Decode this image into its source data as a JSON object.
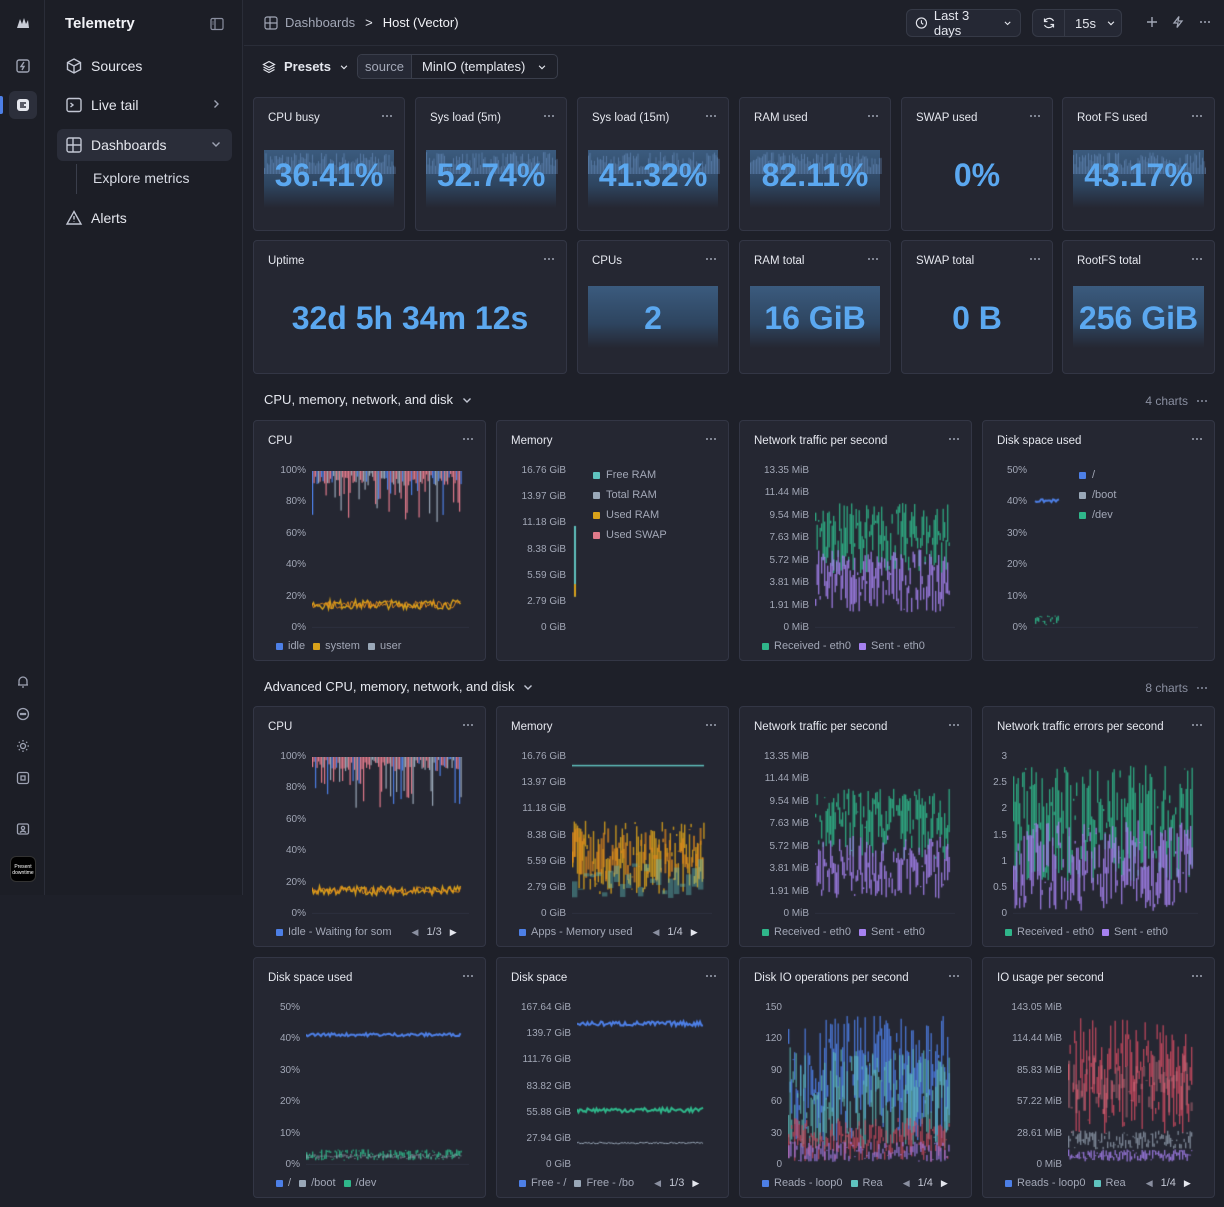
{
  "app": {
    "title": "Telemetry"
  },
  "sidebar": {
    "items": [
      {
        "label": "Sources",
        "icon": "cube-icon"
      },
      {
        "label": "Live tail",
        "icon": "terminal-icon"
      },
      {
        "label": "Dashboards",
        "icon": "dashboard-icon"
      },
      {
        "label": "Alerts",
        "icon": "warning-icon"
      }
    ],
    "sub_item": "Explore metrics",
    "badge_text": "Present downtime"
  },
  "header": {
    "breadcrumb": [
      "Dashboards",
      "Host (Vector)"
    ],
    "separator": ">",
    "time_range": "Last 3 days",
    "refresh": "15s"
  },
  "filters": {
    "presets_label": "Presets",
    "source_key": "source",
    "source_value": "MinIO (templates)"
  },
  "stats_row1": [
    {
      "title": "CPU busy",
      "value": "36.41%"
    },
    {
      "title": "Sys load (5m)",
      "value": "52.74%"
    },
    {
      "title": "Sys load (15m)",
      "value": "41.32%"
    },
    {
      "title": "RAM used",
      "value": "82.11%"
    },
    {
      "title": "SWAP used",
      "value": "0%"
    },
    {
      "title": "Root FS used",
      "value": "43.17%"
    }
  ],
  "stats_row2": [
    {
      "title": "Uptime",
      "value": "32d 5h 34m 12s"
    },
    {
      "title": "CPUs",
      "value": "2"
    },
    {
      "title": "RAM total",
      "value": "16 GiB"
    },
    {
      "title": "SWAP total",
      "value": "0 B"
    },
    {
      "title": "RootFS total",
      "value": "256 GiB"
    }
  ],
  "section1": {
    "title": "CPU, memory, network, and disk",
    "count": "4 charts"
  },
  "section2": {
    "title": "Advanced CPU, memory, network, and disk",
    "count": "8 charts"
  },
  "charts": {
    "cpu1": {
      "title": "CPU",
      "yticks": [
        "100%",
        "80%",
        "60%",
        "40%",
        "20%",
        "0%"
      ],
      "legend": [
        "idle",
        "system",
        "user"
      ]
    },
    "mem1": {
      "title": "Memory",
      "yticks": [
        "16.76 GiB",
        "13.97 GiB",
        "11.18 GiB",
        "8.38 GiB",
        "5.59 GiB",
        "2.79 GiB",
        "0 GiB"
      ],
      "legend": [
        "Free RAM",
        "Total RAM",
        "Used RAM",
        "Used SWAP"
      ]
    },
    "net1": {
      "title": "Network traffic per second",
      "yticks": [
        "13.35 MiB",
        "11.44 MiB",
        "9.54 MiB",
        "7.63 MiB",
        "5.72 MiB",
        "3.81 MiB",
        "1.91 MiB",
        "0 MiB"
      ],
      "legend": [
        "Received - eth0",
        "Sent - eth0"
      ]
    },
    "disk1": {
      "title": "Disk space used",
      "yticks": [
        "50%",
        "40%",
        "30%",
        "20%",
        "10%",
        "0%"
      ],
      "legend": [
        "/",
        "/boot",
        "/dev"
      ]
    },
    "cpu2": {
      "title": "CPU",
      "yticks": [
        "100%",
        "80%",
        "60%",
        "40%",
        "20%",
        "0%"
      ],
      "legend": [
        "Idle - Waiting for som"
      ],
      "page": "1/3"
    },
    "mem2": {
      "title": "Memory",
      "yticks": [
        "16.76 GiB",
        "13.97 GiB",
        "11.18 GiB",
        "8.38 GiB",
        "5.59 GiB",
        "2.79 GiB",
        "0 GiB"
      ],
      "legend": [
        "Apps - Memory used"
      ],
      "page": "1/4"
    },
    "net2": {
      "title": "Network traffic per second",
      "yticks": [
        "13.35 MiB",
        "11.44 MiB",
        "9.54 MiB",
        "7.63 MiB",
        "5.72 MiB",
        "3.81 MiB",
        "1.91 MiB",
        "0 MiB"
      ],
      "legend": [
        "Received - eth0",
        "Sent - eth0"
      ]
    },
    "neterr": {
      "title": "Network traffic errors per second",
      "yticks": [
        "3",
        "2.5",
        "2",
        "1.5",
        "1",
        "0.5",
        "0"
      ],
      "legend": [
        "Received - eth0",
        "Sent - eth0"
      ]
    },
    "disk2": {
      "title": "Disk space used",
      "yticks": [
        "50%",
        "40%",
        "30%",
        "20%",
        "10%",
        "0%"
      ],
      "legend": [
        "/",
        "/boot",
        "/dev"
      ]
    },
    "diskspace": {
      "title": "Disk space",
      "yticks": [
        "167.64 GiB",
        "139.7 GiB",
        "111.76 GiB",
        "83.82 GiB",
        "55.88 GiB",
        "27.94 GiB",
        "0 GiB"
      ],
      "legend": [
        "Free - /",
        "Free - /bo"
      ],
      "page": "1/3"
    },
    "diskio": {
      "title": "Disk IO operations per second",
      "yticks": [
        "150",
        "120",
        "90",
        "60",
        "30",
        "0"
      ],
      "legend": [
        "Reads - loop0",
        "Rea"
      ],
      "page": "1/4"
    },
    "iousage": {
      "title": "IO usage per second",
      "yticks": [
        "143.05 MiB",
        "114.44 MiB",
        "85.83 MiB",
        "57.22 MiB",
        "28.61 MiB",
        "0 MiB"
      ],
      "legend": [
        "Reads - loop0",
        "Rea"
      ],
      "page": "1/4"
    }
  },
  "colors": {
    "blue": "#4d7fe6",
    "yellow": "#d9a21b",
    "pink": "#e07a8a",
    "green": "#2fb68a",
    "purple": "#a681f0",
    "teal": "#5fc2be",
    "grey": "#9aa8b8",
    "orange": "#e0891c",
    "red": "#c94a5f",
    "lightblue": "#4aa6e8"
  }
}
